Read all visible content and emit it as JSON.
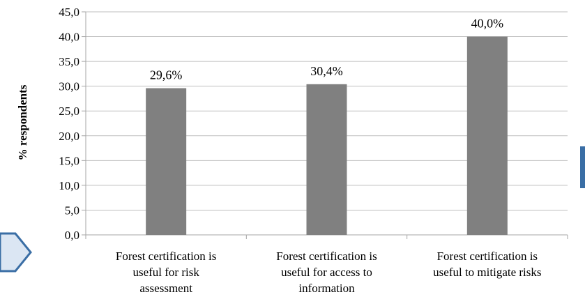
{
  "chart_data": {
    "type": "bar",
    "title": "",
    "xlabel": "",
    "ylabel": "% respondents",
    "ylim": [
      0,
      45
    ],
    "yticks": [
      "0,0",
      "5,0",
      "10,0",
      "15,0",
      "20,0",
      "25,0",
      "30,0",
      "35,0",
      "40,0",
      "45,0"
    ],
    "ytick_values": [
      0,
      5,
      10,
      15,
      20,
      25,
      30,
      35,
      40,
      45
    ],
    "grid": true,
    "legend": "none",
    "categories": [
      [
        "Forest certification is",
        "useful for risk",
        "assessment"
      ],
      [
        "Forest certification is",
        "useful for access to",
        "information"
      ],
      [
        "Forest certification is",
        "useful to mitigate risks"
      ]
    ],
    "values": [
      29.6,
      30.4,
      40.0
    ],
    "data_labels": [
      "29,6%",
      "30,4%",
      "40,0%"
    ],
    "colors": {
      "bar": "#808080",
      "grid": "#bfbfbf",
      "axis": "#a6a6a6",
      "accent_shape": "#3a6ea5",
      "accent_fill": "#dbe6f3"
    }
  }
}
